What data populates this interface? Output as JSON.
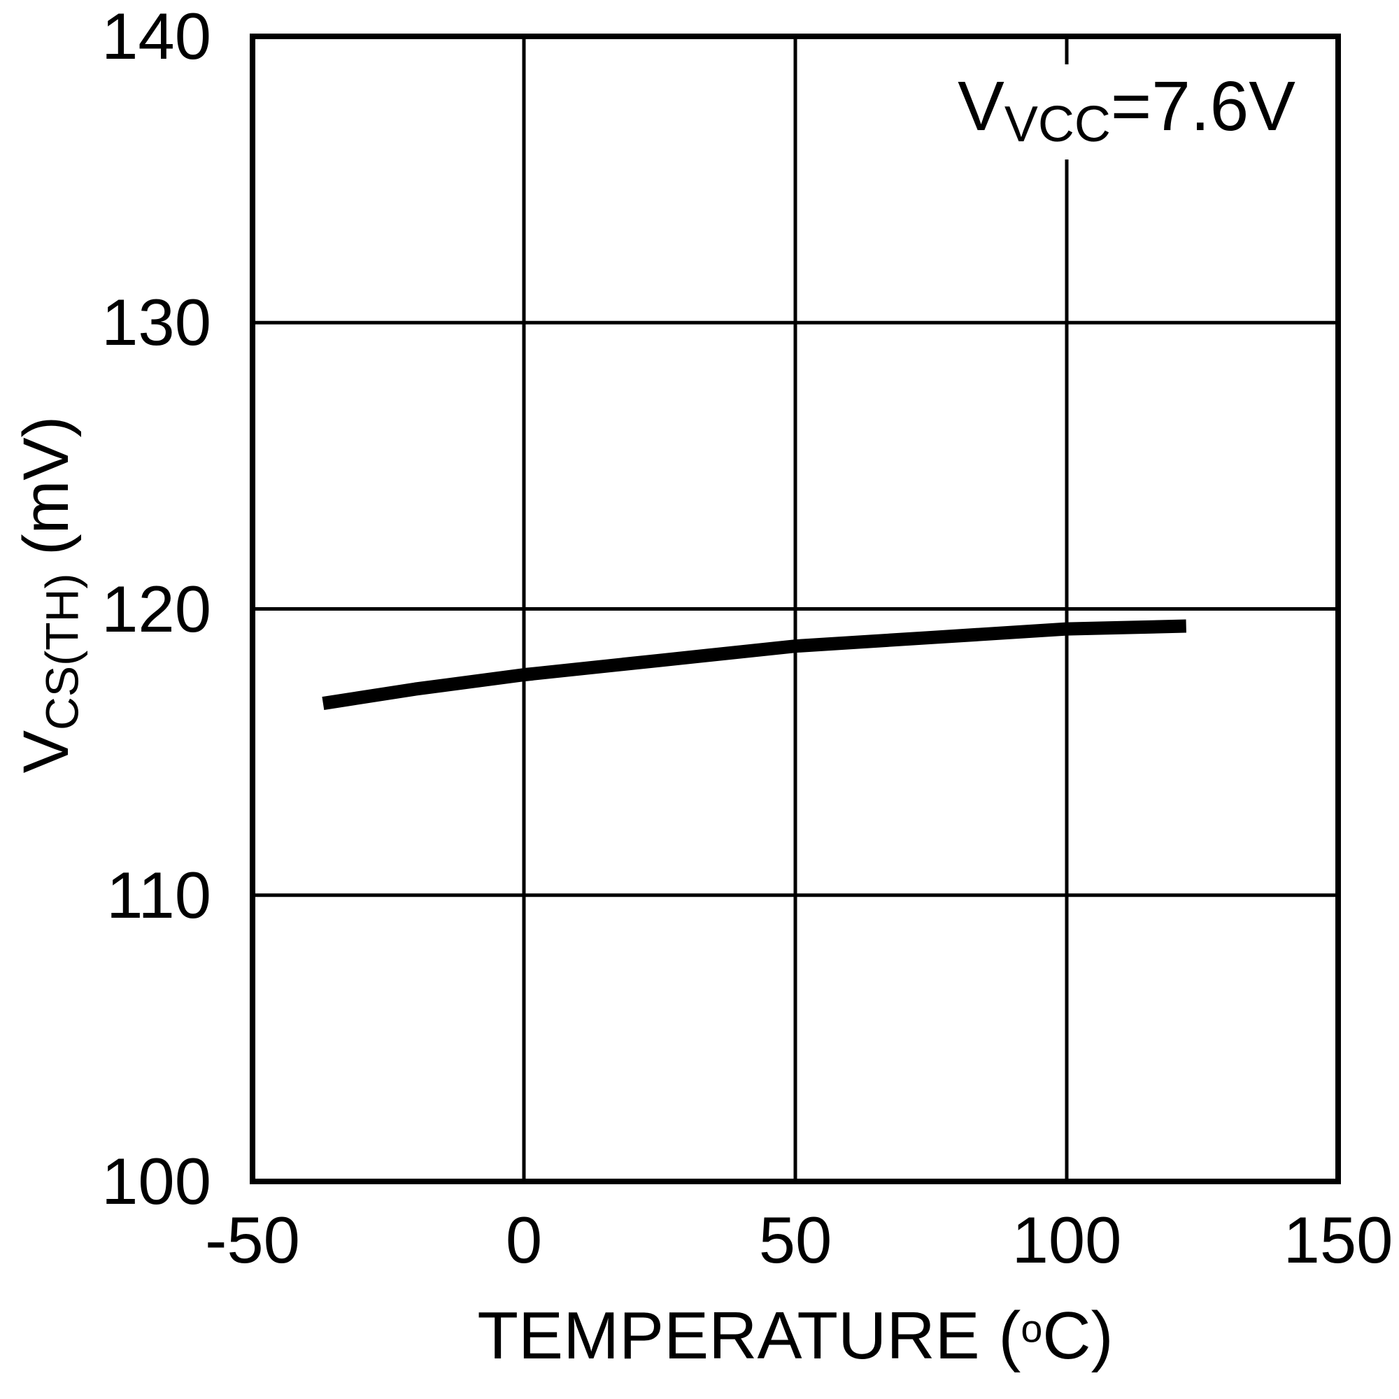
{
  "figure": {
    "background": "#ffffff",
    "foreground": "#000000"
  },
  "chart_data": {
    "type": "line",
    "title": "",
    "xlabel": "TEMPERATURE (°C)",
    "ylabel": "VCS(TH) (mV)",
    "xlabel_parts": {
      "pre": "TEMPERATURE (",
      "sup": "o",
      "post": "C)"
    },
    "ylabel_parts": {
      "base": "V",
      "sub": "CS(TH)",
      "rest": " (mV)"
    },
    "annotation": "VVCC=7.6V",
    "annotation_parts": {
      "base": "V",
      "sub": "VCC",
      "rest": "=7.6V"
    },
    "xlim": [
      -50,
      150
    ],
    "ylim": [
      100,
      140
    ],
    "xticks": [
      -50,
      0,
      50,
      100,
      150
    ],
    "yticks": [
      100,
      110,
      120,
      130,
      140
    ],
    "grid": true,
    "legend": "none",
    "colors": {
      "line": "#000000",
      "grid": "#000000",
      "border": "#000000"
    },
    "series": [
      {
        "name": "VCS(TH) vs temperature at VVCC=7.6V",
        "x": [
          -37,
          -20,
          0,
          25,
          50,
          75,
          100,
          122
        ],
        "y": [
          116.7,
          117.2,
          117.7,
          118.2,
          118.7,
          119.0,
          119.3,
          119.4
        ]
      }
    ]
  }
}
